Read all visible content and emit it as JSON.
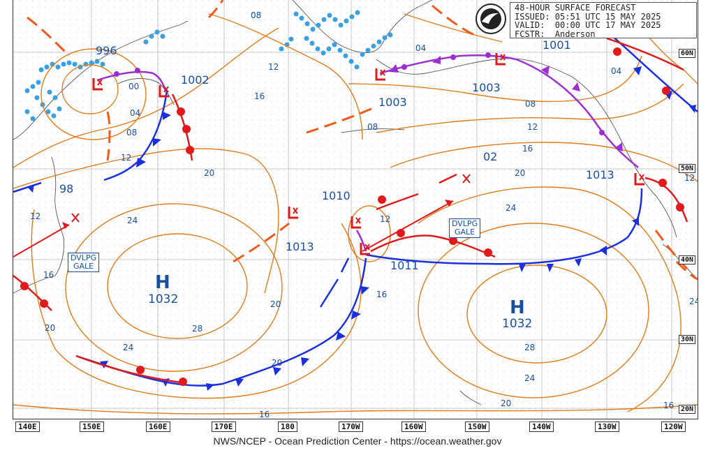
{
  "header": {
    "line1": "48-HOUR SURFACE FORECAST",
    "line2": "ISSUED: 05:51 UTC 15 MAY 2025",
    "line3": "VALID:  00:00 UTC 17 MAY 2025",
    "line4": "FCSTR:  Anderson",
    "logo_icon": "noaa-logo-icon"
  },
  "footer": "NWS/NCEP - Ocean Prediction Center - https://ocean.weather.gov",
  "lon_labels": [
    "140E",
    "150E",
    "160E",
    "170E",
    "180",
    "170W",
    "160W",
    "150W",
    "140W",
    "130W",
    "120W"
  ],
  "lat_labels": [
    "60N",
    "50N",
    "40N",
    "30N",
    "20N"
  ],
  "highs": [
    {
      "letter": "H",
      "value": "1032"
    },
    {
      "letter": "H",
      "value": "1032"
    }
  ],
  "lows": [
    "996",
    "1002",
    "1003",
    "1003",
    "1001",
    "1010",
    "1013",
    "1011",
    "1013",
    "02",
    "98"
  ],
  "isobar_labels": [
    "08",
    "12",
    "16",
    "20",
    "24",
    "28",
    "00",
    "04",
    "08",
    "12",
    "16",
    "20",
    "24",
    "20",
    "16",
    "12",
    "08",
    "04",
    "12",
    "16",
    "20",
    "24",
    "28",
    "24",
    "20",
    "16",
    "12",
    "08",
    "04",
    "12",
    "16",
    "20",
    "24"
  ],
  "warnings": [
    {
      "line1": "DVLPG",
      "line2": "GALE"
    },
    {
      "line1": "DVLPG",
      "line2": "GALE"
    }
  ],
  "colors": {
    "isobar": "#e07b1a",
    "cold_front": "#1a2fe0",
    "warm_front": "#e01a1a",
    "occluded": "#9b30d0",
    "trough": "#f05a1a",
    "ice": "#3aa0e0",
    "label": "#1a4fa0"
  }
}
